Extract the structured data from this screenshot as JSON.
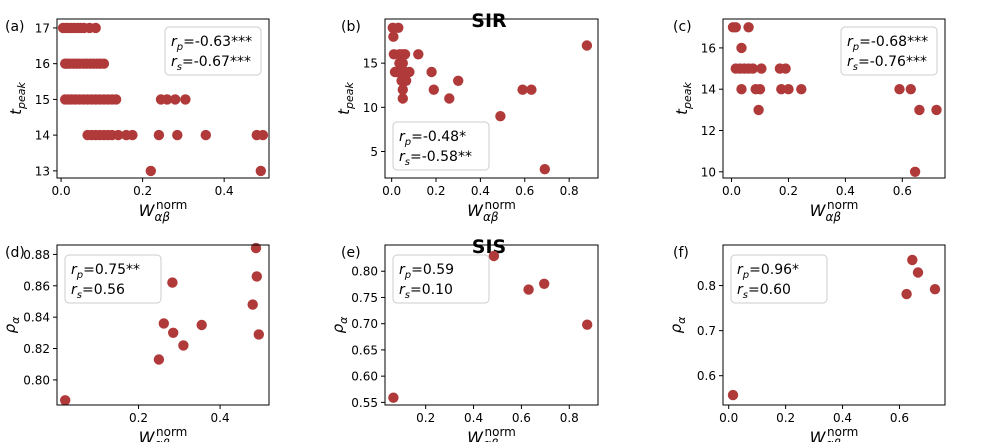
{
  "figure": {
    "row_titles": [
      "SIR",
      "SIS"
    ],
    "marker_color": "#b03a3a"
  },
  "chart_data": [
    {
      "type": "scatter",
      "panel_label": "(a)",
      "ylabel": "t_peak",
      "xlabel": "W_αβ^norm",
      "xlim": [
        -0.01,
        0.51
      ],
      "ylim": [
        12.8,
        17.25
      ],
      "xticks": [
        0.0,
        0.2,
        0.4
      ],
      "xtick_labels": [
        "0.0",
        "0.2",
        "0.4"
      ],
      "yticks": [
        13,
        14,
        15,
        16,
        17
      ],
      "ytick_labels": [
        "13",
        "14",
        "15",
        "16",
        "17"
      ],
      "stats": [
        {
          "symbol": "r",
          "sub": "p",
          "value": "=-0.63***"
        },
        {
          "symbol": "r",
          "sub": "s",
          "value": "=-0.67***"
        }
      ],
      "stats_position": "top-right",
      "x": [
        0.005,
        0.012,
        0.018,
        0.025,
        0.032,
        0.04,
        0.048,
        0.056,
        0.07,
        0.085,
        0.01,
        0.015,
        0.022,
        0.03,
        0.038,
        0.046,
        0.055,
        0.063,
        0.072,
        0.08,
        0.088,
        0.096,
        0.105,
        0.01,
        0.018,
        0.026,
        0.035,
        0.045,
        0.055,
        0.065,
        0.075,
        0.085,
        0.095,
        0.105,
        0.115,
        0.125,
        0.135,
        0.065,
        0.075,
        0.085,
        0.095,
        0.105,
        0.115,
        0.125,
        0.14,
        0.16,
        0.175,
        0.24,
        0.285,
        0.355,
        0.48,
        0.495,
        0.245,
        0.26,
        0.28,
        0.305,
        0.22,
        0.49
      ],
      "y": [
        17,
        17,
        17,
        17,
        17,
        17,
        17,
        17,
        17,
        17,
        16,
        16,
        16,
        16,
        16,
        16,
        16,
        16,
        16,
        16,
        16,
        16,
        16,
        15,
        15,
        15,
        15,
        15,
        15,
        15,
        15,
        15,
        15,
        15,
        15,
        15,
        15,
        14,
        14,
        14,
        14,
        14,
        14,
        14,
        14,
        14,
        14,
        14,
        14,
        14,
        14,
        14,
        15,
        15,
        15,
        15,
        13,
        13
      ]
    },
    {
      "type": "scatter",
      "panel_label": "(b)",
      "ylabel": "t_peak",
      "xlabel": "W_αβ^norm",
      "xlim": [
        -0.03,
        0.93
      ],
      "ylim": [
        2.0,
        20.0
      ],
      "xticks": [
        0.0,
        0.2,
        0.4,
        0.6,
        0.8
      ],
      "xtick_labels": [
        "0.0",
        "0.2",
        "0.4",
        "0.6",
        "0.8"
      ],
      "yticks": [
        5,
        10,
        15
      ],
      "ytick_labels": [
        "5",
        "10",
        "15"
      ],
      "stats": [
        {
          "symbol": "r",
          "sub": "p",
          "value": "=-0.48*"
        },
        {
          "symbol": "r",
          "sub": "s",
          "value": "=-0.58**"
        }
      ],
      "stats_position": "bottom-left",
      "x": [
        0.005,
        0.008,
        0.03,
        0.01,
        0.035,
        0.045,
        0.055,
        0.06,
        0.015,
        0.025,
        0.045,
        0.06,
        0.08,
        0.035,
        0.05,
        0.12,
        0.045,
        0.055,
        0.065,
        0.18,
        0.05,
        0.19,
        0.05,
        0.26,
        0.3,
        0.49,
        0.59,
        0.63,
        0.69,
        0.88
      ],
      "y": [
        19,
        18,
        19,
        16,
        16,
        16,
        16,
        16,
        14,
        14,
        14,
        14,
        14,
        15,
        15,
        16,
        13,
        13,
        13,
        14,
        12,
        12,
        11,
        11,
        13,
        9,
        12,
        12,
        3,
        17
      ]
    },
    {
      "type": "scatter",
      "panel_label": "(c)",
      "ylabel": "t_peak",
      "xlabel": "W_αβ^norm",
      "xlim": [
        -0.03,
        0.75
      ],
      "ylim": [
        9.7,
        17.4
      ],
      "xticks": [
        0.0,
        0.2,
        0.4,
        0.6
      ],
      "xtick_labels": [
        "0.0",
        "0.2",
        "0.4",
        "0.6"
      ],
      "yticks": [
        10,
        12,
        14,
        16
      ],
      "ytick_labels": [
        "10",
        "12",
        "14",
        "16"
      ],
      "stats": [
        {
          "symbol": "r",
          "sub": "p",
          "value": "=-0.68***"
        },
        {
          "symbol": "r",
          "sub": "s",
          "value": "=-0.76***"
        }
      ],
      "stats_position": "top-right",
      "x": [
        0.005,
        0.015,
        0.06,
        0.035,
        0.015,
        0.03,
        0.045,
        0.06,
        0.075,
        0.105,
        0.17,
        0.19,
        0.035,
        0.085,
        0.1,
        0.175,
        0.2,
        0.245,
        0.095,
        0.59,
        0.63,
        0.66,
        0.72,
        0.645
      ],
      "y": [
        17,
        17,
        17,
        16,
        15,
        15,
        15,
        15,
        15,
        15,
        15,
        15,
        14,
        14,
        14,
        14,
        14,
        14,
        13,
        14,
        14,
        13,
        13,
        10
      ]
    },
    {
      "type": "scatter",
      "panel_label": "(d)",
      "ylabel": "ρ_α",
      "xlabel": "W_αβ^norm",
      "xlim": [
        0.0,
        0.52
      ],
      "ylim": [
        0.784,
        0.886
      ],
      "xticks": [
        0.2,
        0.4
      ],
      "xtick_labels": [
        "0.2",
        "0.4"
      ],
      "yticks": [
        0.8,
        0.82,
        0.84,
        0.86,
        0.88
      ],
      "ytick_labels": [
        "0.80",
        "0.82",
        "0.84",
        "0.86",
        "0.88"
      ],
      "stats": [
        {
          "symbol": "r",
          "sub": "p",
          "value": "=0.75**"
        },
        {
          "symbol": "r",
          "sub": "s",
          "value": "=0.56"
        }
      ],
      "stats_position": "top-left",
      "x": [
        0.02,
        0.25,
        0.262,
        0.283,
        0.285,
        0.31,
        0.355,
        0.48,
        0.488,
        0.49,
        0.495
      ],
      "y": [
        0.787,
        0.813,
        0.836,
        0.862,
        0.83,
        0.822,
        0.835,
        0.848,
        0.884,
        0.866,
        0.829
      ]
    },
    {
      "type": "scatter",
      "panel_label": "(e)",
      "ylabel": "ρ_α",
      "xlabel": "W_αβ^norm",
      "xlim": [
        0.03,
        0.92
      ],
      "ylim": [
        0.545,
        0.85
      ],
      "xticks": [
        0.2,
        0.4,
        0.6,
        0.8
      ],
      "xtick_labels": [
        "0.2",
        "0.4",
        "0.6",
        "0.8"
      ],
      "yticks": [
        0.55,
        0.6,
        0.65,
        0.7,
        0.75,
        0.8
      ],
      "ytick_labels": [
        "0.55",
        "0.60",
        "0.65",
        "0.70",
        "0.75",
        "0.80"
      ],
      "stats": [
        {
          "symbol": "r",
          "sub": "p",
          "value": "=0.59"
        },
        {
          "symbol": "r",
          "sub": "s",
          "value": "=0.10"
        }
      ],
      "stats_position": "top-left",
      "x": [
        0.065,
        0.485,
        0.63,
        0.695,
        0.875
      ],
      "y": [
        0.559,
        0.829,
        0.765,
        0.776,
        0.698
      ]
    },
    {
      "type": "scatter",
      "panel_label": "(f)",
      "ylabel": "ρ_α",
      "xlabel": "W_αβ^norm",
      "xlim": [
        -0.02,
        0.76
      ],
      "ylim": [
        0.535,
        0.89
      ],
      "xticks": [
        0.0,
        0.2,
        0.4,
        0.6
      ],
      "xtick_labels": [
        "0.0",
        "0.2",
        "0.4",
        "0.6"
      ],
      "yticks": [
        0.6,
        0.7,
        0.8
      ],
      "ytick_labels": [
        "0.6",
        "0.7",
        "0.8"
      ],
      "stats": [
        {
          "symbol": "r",
          "sub": "p",
          "value": "=0.96*"
        },
        {
          "symbol": "r",
          "sub": "s",
          "value": "=0.60"
        }
      ],
      "stats_position": "top-left",
      "x": [
        0.015,
        0.625,
        0.645,
        0.665,
        0.725
      ],
      "y": [
        0.557,
        0.781,
        0.857,
        0.829,
        0.792
      ]
    }
  ]
}
